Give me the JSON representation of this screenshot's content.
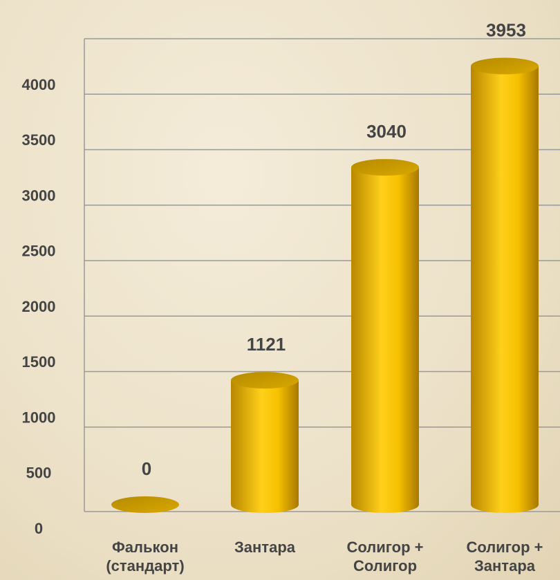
{
  "chart_data": {
    "type": "bar3d",
    "categories": [
      "Фалькон (стандарт)",
      "Зантара",
      "Солигор + Солигор",
      "Солигор + Зантара"
    ],
    "values": [
      0,
      1121,
      3040,
      3953
    ],
    "color": "#f2bd00",
    "ylim": [
      0,
      4000
    ],
    "yticks": [
      0,
      500,
      1000,
      1500,
      2000,
      2500,
      3000,
      3500,
      4000
    ],
    "grid": true
  }
}
